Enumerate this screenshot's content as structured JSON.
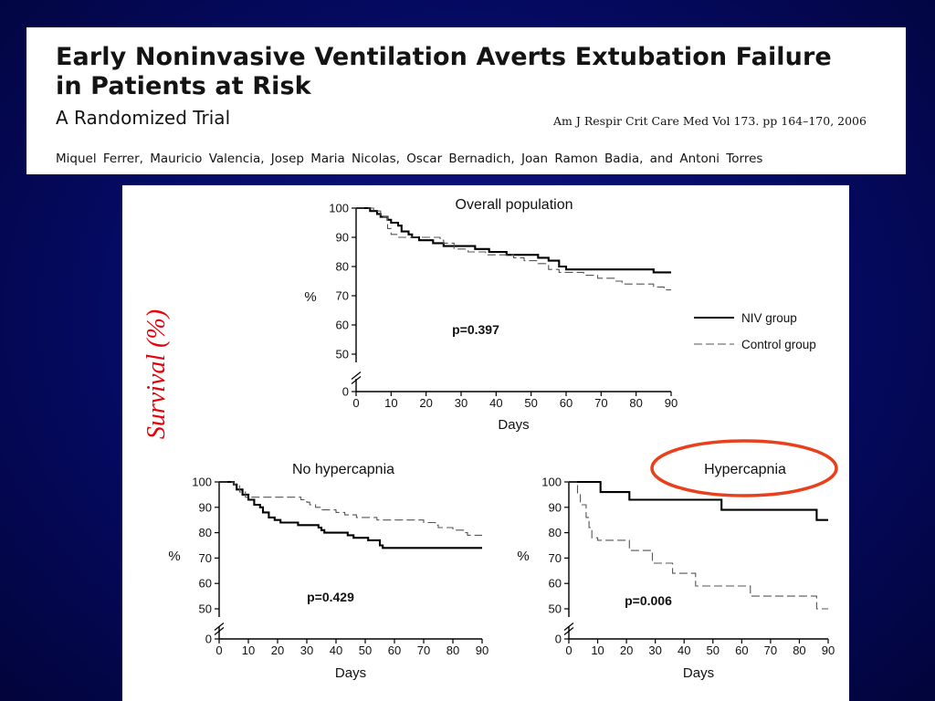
{
  "header": {
    "title_line1": "Early Noninvasive Ventilation Averts Extubation Failure",
    "title_line2": "in Patients at Risk",
    "subtitle": "A Randomized Trial",
    "citation": "Am J Respir Crit Care Med   Vol 173. pp 164–170, 2006",
    "authors": "Miquel Ferrer, Mauricio Valencia, Josep Maria Nicolas, Oscar Bernadich, Joan Ramon Badia, and Antoni Torres"
  },
  "side_label": "Survival (%)",
  "colors": {
    "background": "#050a62",
    "survival_label": "#e8000a",
    "highlight_ellipse": "#e8401c",
    "niv_line": "#000000",
    "control_line": "#555555"
  },
  "legend": {
    "niv": "NIV group",
    "control": "Control group"
  },
  "chart_data": [
    {
      "type": "line",
      "title": "Overall population",
      "xlabel": "Days",
      "ylabel": "%",
      "xlim": [
        0,
        90
      ],
      "ylim": [
        0,
        100
      ],
      "axis_break": true,
      "xticks": [
        "0",
        "10",
        "20",
        "30",
        "40",
        "50",
        "60",
        "70",
        "80",
        "90"
      ],
      "yticks": [
        "0",
        "50",
        "60",
        "70",
        "80",
        "90",
        "100"
      ],
      "annotation": "p=0.397",
      "legend_position": "right",
      "series": [
        {
          "name": "NIV group",
          "style": "solid",
          "points": [
            [
              0,
              100
            ],
            [
              3,
              100
            ],
            [
              4,
              99
            ],
            [
              6,
              98
            ],
            [
              7,
              97
            ],
            [
              9,
              96
            ],
            [
              10,
              95
            ],
            [
              12,
              94
            ],
            [
              13,
              92
            ],
            [
              15,
              91
            ],
            [
              16,
              90
            ],
            [
              18,
              89
            ],
            [
              22,
              88
            ],
            [
              25,
              87
            ],
            [
              34,
              86
            ],
            [
              38,
              85
            ],
            [
              43,
              84
            ],
            [
              52,
              83
            ],
            [
              55,
              82
            ],
            [
              58,
              80
            ],
            [
              60,
              79
            ],
            [
              69,
              79
            ],
            [
              78,
              79
            ],
            [
              85,
              78
            ],
            [
              86,
              78
            ],
            [
              90,
              78
            ]
          ]
        },
        {
          "name": "Control group",
          "style": "dashed",
          "points": [
            [
              0,
              100
            ],
            [
              5,
              99
            ],
            [
              7,
              97
            ],
            [
              9,
              93
            ],
            [
              10,
              91
            ],
            [
              12,
              90
            ],
            [
              22,
              90
            ],
            [
              24,
              89
            ],
            [
              25,
              88
            ],
            [
              28,
              86
            ],
            [
              32,
              85
            ],
            [
              37,
              84
            ],
            [
              45,
              83
            ],
            [
              48,
              82
            ],
            [
              52,
              81
            ],
            [
              55,
              79
            ],
            [
              58,
              78
            ],
            [
              65,
              77
            ],
            [
              69,
              76
            ],
            [
              74,
              75
            ],
            [
              76,
              74
            ],
            [
              85,
              73
            ],
            [
              88,
              72
            ],
            [
              90,
              72
            ]
          ]
        }
      ]
    },
    {
      "type": "line",
      "title": "No hypercapnia",
      "xlabel": "Days",
      "ylabel": "%",
      "xlim": [
        0,
        90
      ],
      "ylim": [
        0,
        100
      ],
      "axis_break": true,
      "xticks": [
        "0",
        "10",
        "20",
        "30",
        "40",
        "50",
        "60",
        "70",
        "80",
        "90"
      ],
      "yticks": [
        "0",
        "50",
        "60",
        "70",
        "80",
        "90",
        "100"
      ],
      "annotation": "p=0.429",
      "series": [
        {
          "name": "NIV group",
          "style": "solid",
          "points": [
            [
              0,
              100
            ],
            [
              5,
              99
            ],
            [
              6,
              97
            ],
            [
              8,
              95
            ],
            [
              10,
              93
            ],
            [
              12,
              91
            ],
            [
              14,
              90
            ],
            [
              15,
              88
            ],
            [
              17,
              86
            ],
            [
              19,
              85
            ],
            [
              21,
              84
            ],
            [
              27,
              83
            ],
            [
              33,
              83
            ],
            [
              34,
              82
            ],
            [
              35,
              81
            ],
            [
              36,
              80
            ],
            [
              44,
              79
            ],
            [
              46,
              78
            ],
            [
              51,
              77
            ],
            [
              55,
              75
            ],
            [
              56,
              74
            ],
            [
              90,
              74
            ]
          ]
        },
        {
          "name": "Control group",
          "style": "dashed",
          "points": [
            [
              0,
              100
            ],
            [
              5,
              99
            ],
            [
              7,
              96
            ],
            [
              9,
              94
            ],
            [
              26,
              94
            ],
            [
              28,
              93
            ],
            [
              30,
              92
            ],
            [
              31,
              91
            ],
            [
              33,
              90
            ],
            [
              35,
              89
            ],
            [
              40,
              88
            ],
            [
              43,
              87
            ],
            [
              47,
              86
            ],
            [
              54,
              85
            ],
            [
              69,
              85
            ],
            [
              70,
              84
            ],
            [
              74,
              83
            ],
            [
              75,
              82
            ],
            [
              80,
              81
            ],
            [
              84,
              80
            ],
            [
              85,
              79
            ],
            [
              90,
              79
            ]
          ]
        }
      ]
    },
    {
      "type": "line",
      "title": "Hypercapnia",
      "xlabel": "Days",
      "ylabel": "%",
      "xlim": [
        0,
        90
      ],
      "ylim": [
        0,
        100
      ],
      "axis_break": true,
      "xticks": [
        "0",
        "10",
        "20",
        "30",
        "40",
        "50",
        "60",
        "70",
        "80",
        "90"
      ],
      "yticks": [
        "0",
        "50",
        "60",
        "70",
        "80",
        "90",
        "100"
      ],
      "annotation": "p=0.006",
      "highlighted": true,
      "series": [
        {
          "name": "NIV group",
          "style": "solid",
          "points": [
            [
              0,
              100
            ],
            [
              10,
              100
            ],
            [
              11,
              96
            ],
            [
              20,
              96
            ],
            [
              21,
              93
            ],
            [
              52,
              93
            ],
            [
              53,
              89
            ],
            [
              85,
              89
            ],
            [
              86,
              85
            ],
            [
              90,
              85
            ]
          ]
        },
        {
          "name": "Control group",
          "style": "dashed",
          "points": [
            [
              0,
              100
            ],
            [
              3,
              95
            ],
            [
              4,
              91
            ],
            [
              6,
              86
            ],
            [
              7,
              82
            ],
            [
              8,
              78
            ],
            [
              10,
              77
            ],
            [
              20,
              77
            ],
            [
              21,
              73
            ],
            [
              28,
              73
            ],
            [
              29,
              68
            ],
            [
              35,
              68
            ],
            [
              36,
              64
            ],
            [
              43,
              64
            ],
            [
              44,
              59
            ],
            [
              62,
              59
            ],
            [
              63,
              55
            ],
            [
              85,
              55
            ],
            [
              86,
              50
            ],
            [
              90,
              50
            ]
          ]
        }
      ]
    }
  ]
}
